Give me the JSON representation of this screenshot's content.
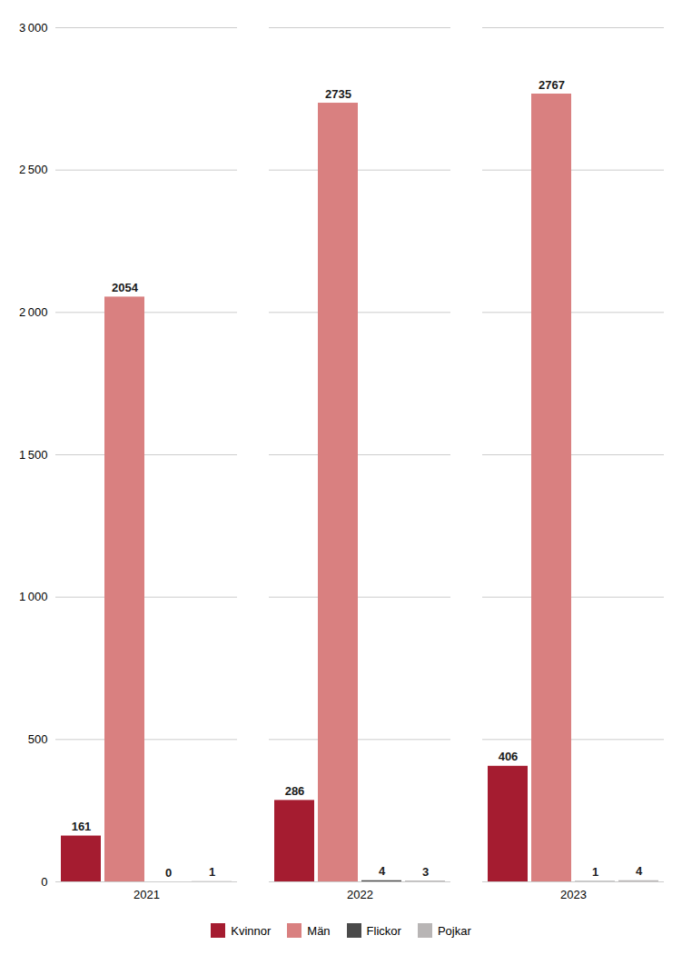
{
  "chart_data": {
    "type": "bar",
    "categories": [
      "2021",
      "2022",
      "2023"
    ],
    "series": [
      {
        "name": "Kvinnor",
        "color": "#a51c30",
        "values": [
          161,
          286,
          406
        ]
      },
      {
        "name": "Män",
        "color": "#d98080",
        "values": [
          2054,
          2735,
          2767
        ]
      },
      {
        "name": "Flickor",
        "color": "#4a4a4a",
        "values": [
          0,
          4,
          1
        ]
      },
      {
        "name": "Pojkar",
        "color": "#b8b5b5",
        "values": [
          1,
          3,
          4
        ]
      }
    ],
    "ylim": [
      0,
      3000
    ],
    "yticks": [
      0,
      500,
      {
        "value": 1000,
        "label": "1 000"
      },
      {
        "value": 1500,
        "label": "1 500"
      },
      {
        "value": 2000,
        "label": "2 000"
      },
      {
        "value": 2500,
        "label": "2 500"
      },
      {
        "value": 3000,
        "label": "3 000"
      }
    ],
    "grid": true,
    "legend": "bottom",
    "data_labels": true
  }
}
